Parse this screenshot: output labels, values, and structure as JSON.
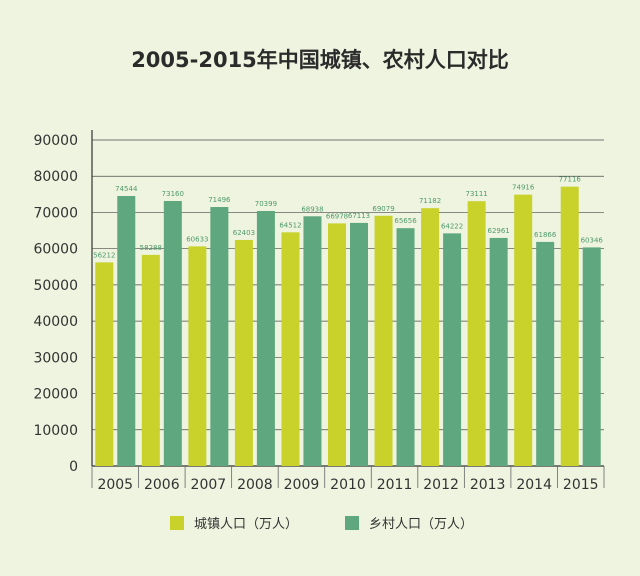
{
  "colors": {
    "background": "#eef4df",
    "urban": "#c8d22b",
    "rural": "#5fa77e",
    "axis": "#555555"
  },
  "chart_data": {
    "type": "bar",
    "title": "2005-2015年中国城镇、农村人口对比",
    "xlabel": "",
    "ylabel": "",
    "categories": [
      "2005",
      "2006",
      "2007",
      "2008",
      "2009",
      "2010",
      "2011",
      "2012",
      "2013",
      "2014",
      "2015"
    ],
    "series": [
      {
        "name": "城镇人口（万人）",
        "values": [
          56212,
          58288,
          60633,
          62403,
          64512,
          66978,
          69079,
          71182,
          73111,
          74916,
          77116
        ]
      },
      {
        "name": "乡村人口（万人）",
        "values": [
          74544,
          73160,
          71496,
          70399,
          68938,
          67113,
          65656,
          64222,
          62961,
          61866,
          60346
        ]
      }
    ],
    "ylim": [
      0,
      90000
    ],
    "yticks": [
      0,
      10000,
      20000,
      30000,
      40000,
      50000,
      60000,
      70000,
      80000,
      90000
    ],
    "grid": true,
    "legend_position": "bottom"
  }
}
